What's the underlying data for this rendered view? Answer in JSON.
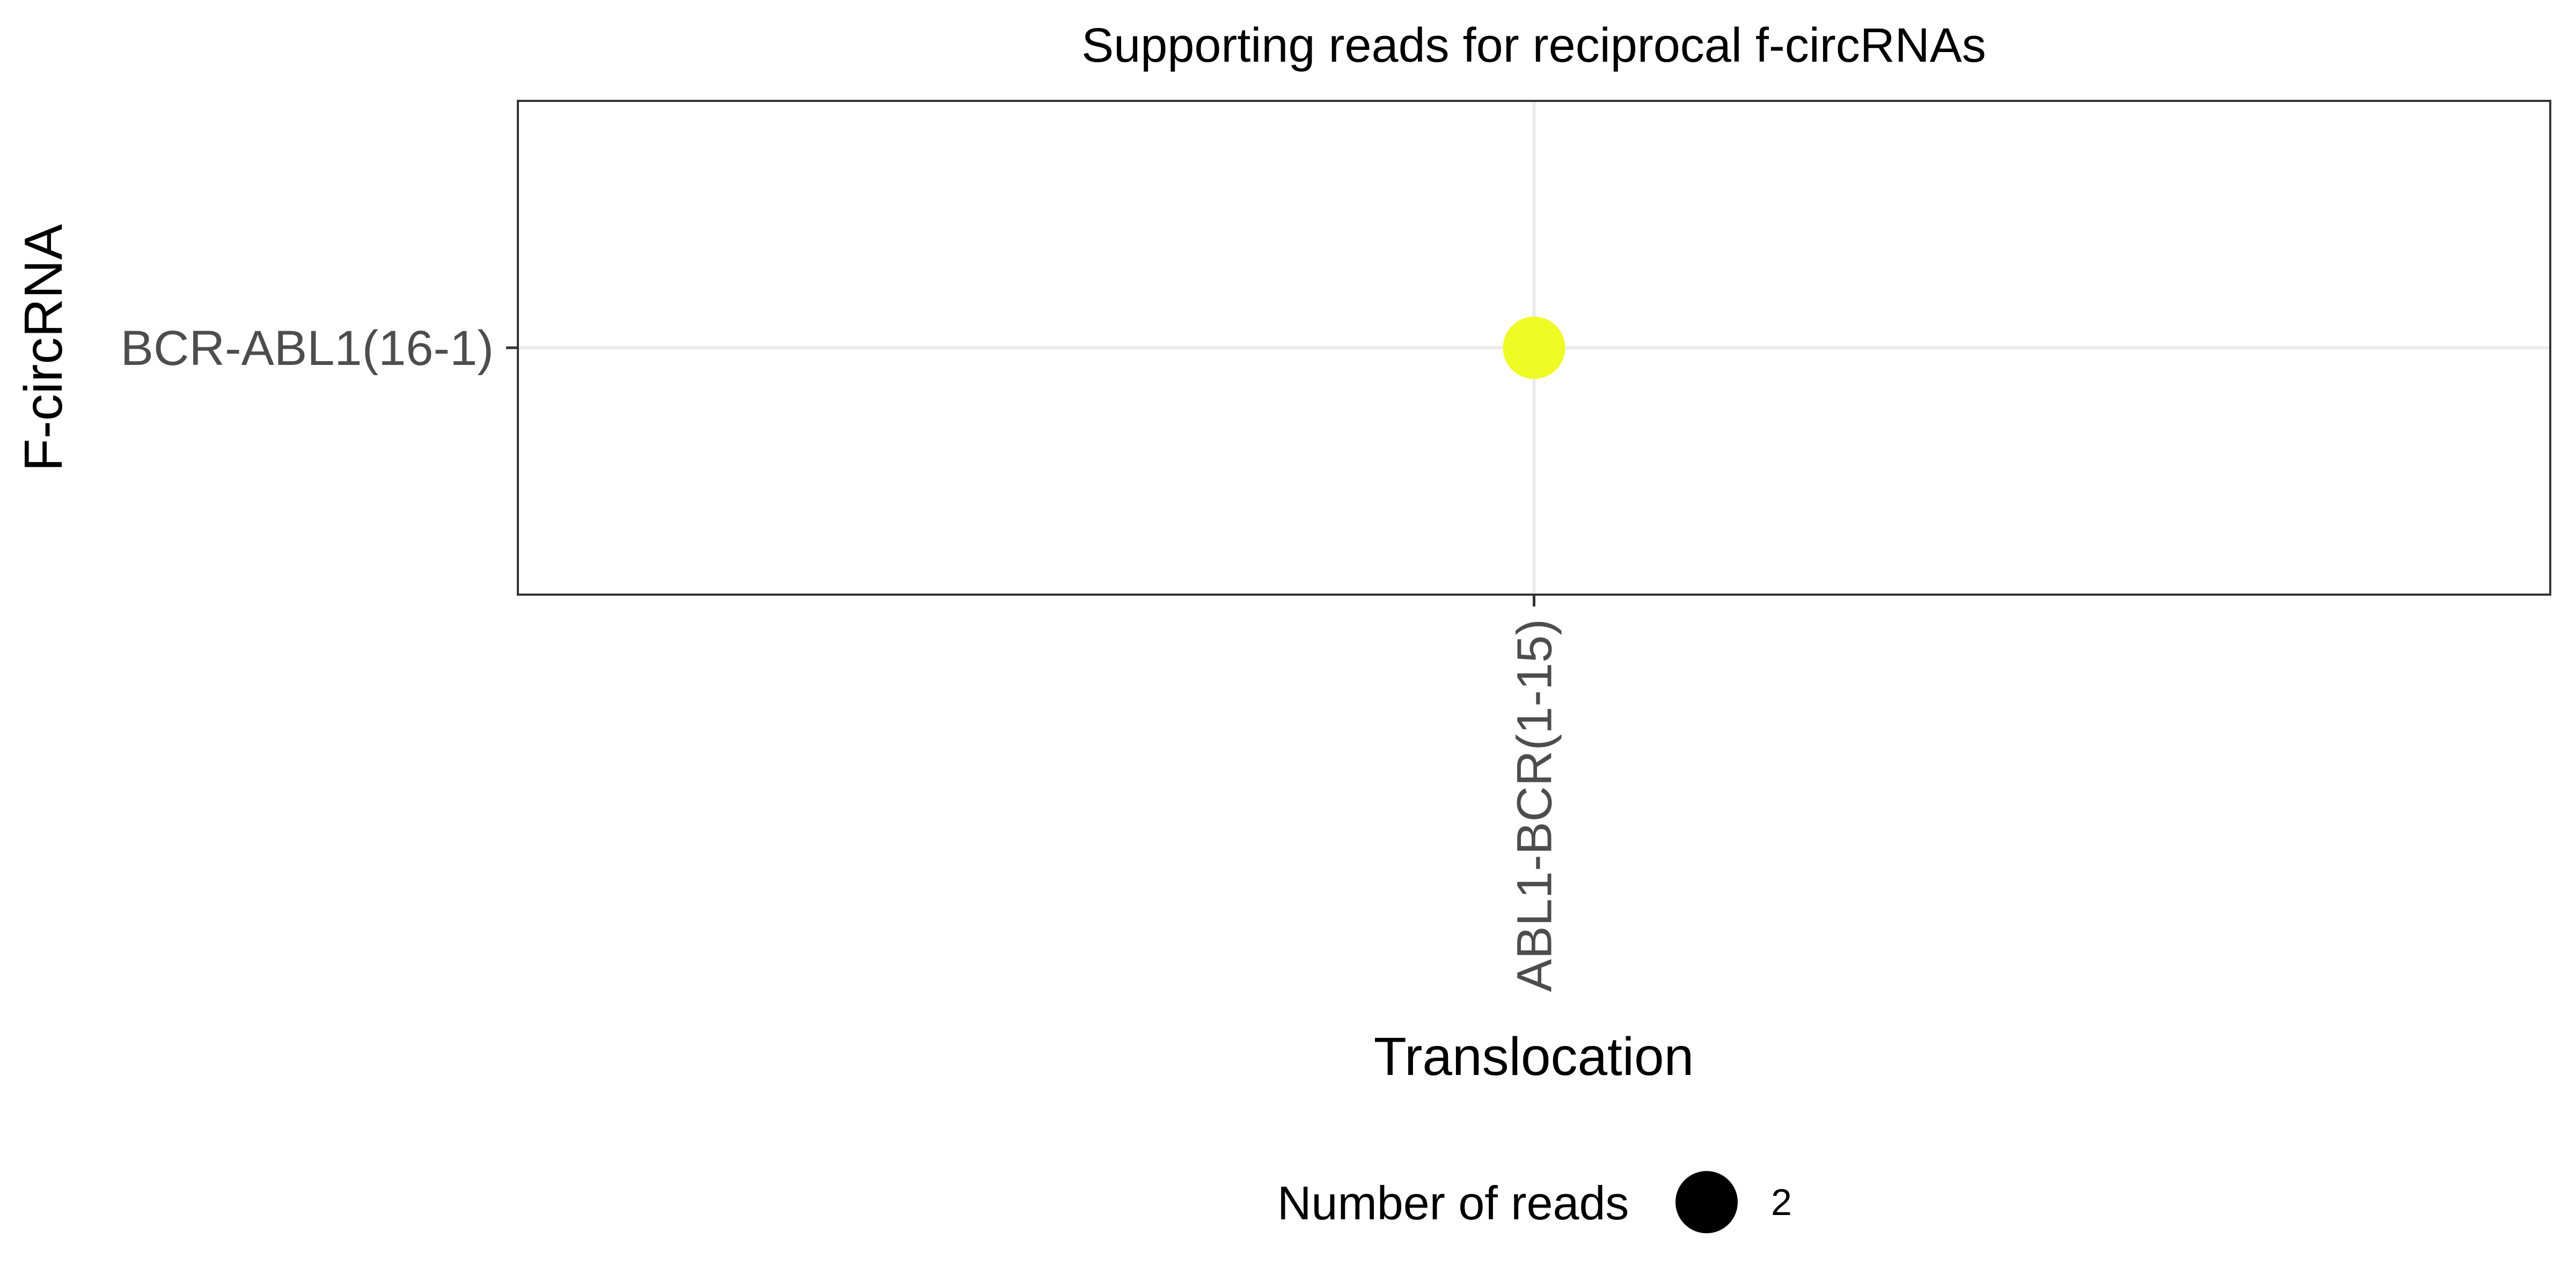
{
  "chart_data": {
    "type": "scatter",
    "title": "Supporting reads for reciprocal f-circRNAs",
    "xlabel": "Translocation",
    "ylabel": "F-circRNA",
    "x_categories": [
      "ABL1-BCR(1-15)"
    ],
    "y_categories": [
      "BCR-ABL1(16-1)"
    ],
    "points": [
      {
        "x": "ABL1-BCR(1-15)",
        "y": "BCR-ABL1(16-1)",
        "reads": 2
      }
    ],
    "point_color": "#f0fa24",
    "grid": true,
    "legend": {
      "title": "Number of reads",
      "entries": [
        {
          "label": "2",
          "value": 2
        }
      ],
      "position": "bottom",
      "symbol_color": "#000000"
    }
  }
}
